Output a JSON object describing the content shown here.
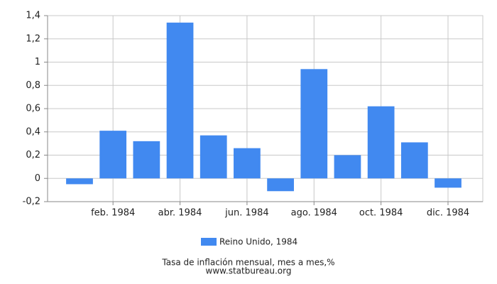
{
  "chart_data": {
    "type": "bar",
    "categories": [
      null,
      "feb. 1984",
      null,
      "abr. 1984",
      null,
      "jun. 1984",
      null,
      "ago. 1984",
      null,
      "oct. 1984",
      null,
      "dic. 1984"
    ],
    "series": [
      {
        "name": "Reino Unido, 1984",
        "color": "#4189f0",
        "values": [
          -0.05,
          0.41,
          0.32,
          1.34,
          0.37,
          0.26,
          -0.11,
          0.94,
          0.2,
          0.62,
          0.31,
          -0.08
        ]
      }
    ],
    "ylim": [
      -0.2,
      1.4
    ],
    "yticks": [
      {
        "value": -0.2,
        "label": "-0,2"
      },
      0,
      {
        "value": 0.2,
        "label": "0,2"
      },
      {
        "value": 0.4,
        "label": "0,4"
      },
      {
        "value": 0.6,
        "label": "0,6"
      },
      {
        "value": 0.8,
        "label": "0,8"
      },
      1,
      {
        "value": 1.2,
        "label": "1,2"
      },
      {
        "value": 1.4,
        "label": "1,4"
      }
    ],
    "grid": true,
    "legend": "bottom",
    "caption": "Tasa de inflación mensual, mes a mes,%",
    "source": "www.statbureau.org"
  }
}
